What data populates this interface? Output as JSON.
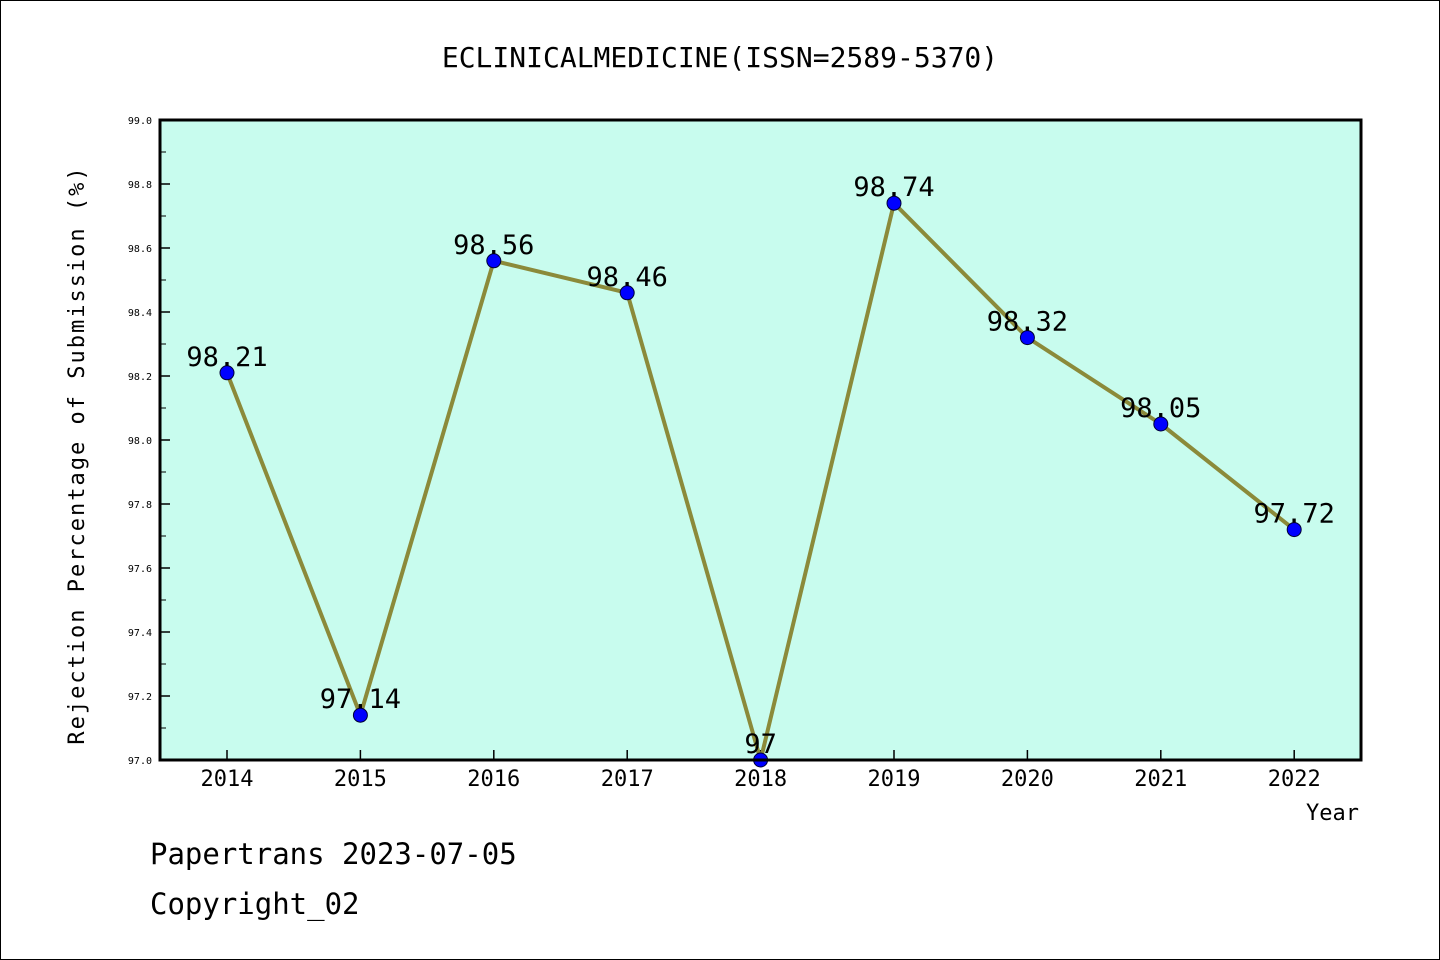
{
  "chart_data": {
    "type": "line",
    "title": "ECLINICALMEDICINE(ISSN=2589-5370)",
    "xlabel": "Year",
    "ylabel": "Rejection Percentage of Submission (%)",
    "categories": [
      "2014",
      "2015",
      "2016",
      "2017",
      "2018",
      "2019",
      "2020",
      "2021",
      "2022"
    ],
    "values": [
      98.21,
      97.14,
      98.56,
      98.46,
      97,
      98.74,
      98.32,
      98.05,
      97.72
    ],
    "data_labels": [
      "98.21",
      "97.14",
      "98.56",
      "98.46",
      "97",
      "98.74",
      "98.32",
      "98.05",
      "97.72"
    ],
    "ylim": [
      97.0,
      99.0
    ],
    "yticks": [
      "97.0",
      "97.2",
      "97.4",
      "97.6",
      "97.8",
      "98.0",
      "98.2",
      "98.4",
      "98.6",
      "98.8",
      "99.0"
    ],
    "grid": false,
    "colors": {
      "plot_background": "#c8fcee",
      "line": "#8b8a3a",
      "marker": "#0000ff"
    }
  },
  "footer": {
    "line1": "Papertrans 2023-07-05",
    "line2": "Copyright_02"
  }
}
